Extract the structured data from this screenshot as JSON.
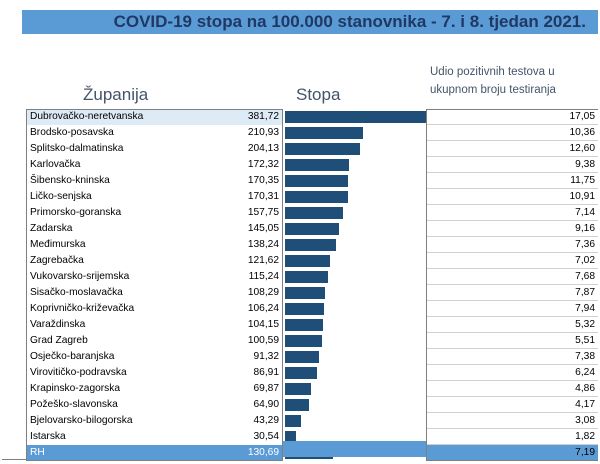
{
  "title": "COVID-19 stopa na 100.000 stanovnika - 7. i 8. tjedan 2021.",
  "headers": {
    "zupanija": "Županija",
    "stopa": "Stopa",
    "udio_line1": "Udio pozitivnih testova u",
    "udio_line2": "ukupnom broju testiranja"
  },
  "colors": {
    "title_bar": "#5b9bd5",
    "title_text": "#1f3864",
    "bar": "#1f4e79",
    "total_row": "#5b9bd5",
    "highlight_row": "#ddebf7"
  },
  "chart_data": {
    "type": "bar",
    "orientation": "horizontal",
    "title": "COVID-19 stopa na 100.000 stanovnika - 7. i 8. tjedan 2021.",
    "categories": [
      "Dubrovačko-neretvanska",
      "Brodsko-posavska",
      "Splitsko-dalmatinska",
      "Karlovačka",
      "Šibensko-kninska",
      "Ličko-senjska",
      "Primorsko-goranska",
      "Zadarska",
      "Međimurska",
      "Zagrebačka",
      "Vukovarsko-srijemska",
      "Sisačko-moslavačka",
      "Koprivničko-križevačka",
      "Varaždinska",
      "Grad Zagreb",
      "Osječko-baranjska",
      "Virovitičko-podravska",
      "Krapinsko-zagorska",
      "Požeško-slavonska",
      "Bjelovarsko-bilogorska",
      "Istarska",
      "RH"
    ],
    "stopa": [
      "381,72",
      "210,93",
      "204,13",
      "172,32",
      "170,35",
      "170,31",
      "157,75",
      "145,05",
      "138,24",
      "121,62",
      "115,24",
      "108,29",
      "106,24",
      "104,15",
      "100,59",
      "91,32",
      "86,91",
      "69,87",
      "64,90",
      "43,29",
      "30,54",
      "130,69"
    ],
    "values": [
      381.72,
      210.93,
      204.13,
      172.32,
      170.35,
      170.31,
      157.75,
      145.05,
      138.24,
      121.62,
      115.24,
      108.29,
      106.24,
      104.15,
      100.59,
      91.32,
      86.91,
      69.87,
      64.9,
      43.29,
      30.54,
      130.69
    ],
    "udio": [
      "17,05",
      "10,36",
      "12,60",
      "9,38",
      "11,75",
      "10,91",
      "7,14",
      "9,16",
      "7,36",
      "7,02",
      "7,68",
      "7,87",
      "7,94",
      "5,32",
      "5,51",
      "7,38",
      "6,24",
      "4,86",
      "4,17",
      "3,08",
      "1,82",
      "7,19"
    ],
    "xlim": [
      0,
      381.72
    ],
    "highlight_index": 0,
    "total_index": 21
  }
}
